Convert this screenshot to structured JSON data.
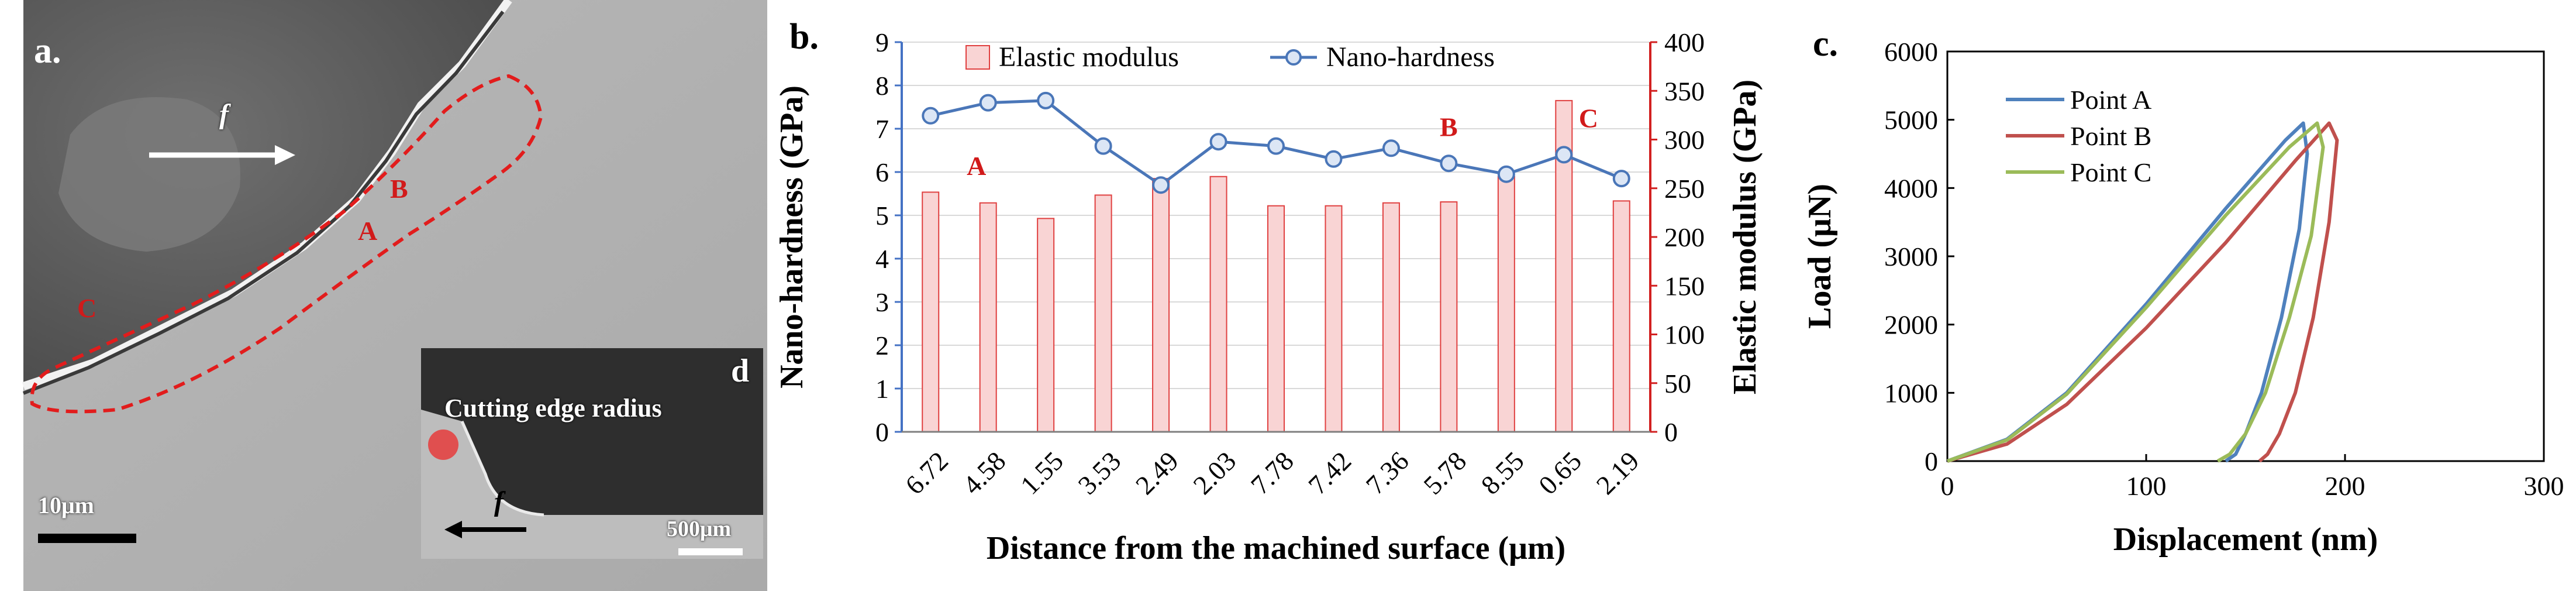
{
  "panel_a": {
    "label": "a.",
    "feed_symbol": "f",
    "points": [
      "A",
      "B",
      "C"
    ],
    "scalebar": "10μm",
    "inset": {
      "label": "d",
      "caption": "Cutting edge radius",
      "feed_symbol": "f",
      "scalebar": "500μm"
    }
  },
  "panel_b": {
    "label": "b.",
    "annotations": [
      "A",
      "B",
      "C"
    ]
  },
  "panel_c": {
    "label": "c."
  },
  "colors": {
    "bar_fill": "#f9d4d4",
    "bar_edge": "#e04040",
    "hardness_line": "#4a76b8",
    "axis_right": "#d22020",
    "curve_a": "#4f81bd",
    "curve_b": "#c0504d",
    "curve_c": "#9bbb59",
    "annotation": "#d11a1a"
  },
  "chart_data": [
    {
      "type": "bar",
      "xlabel": "Distance from the machined surface (μm)",
      "ylabel": "Nano-hardness (GPa)",
      "y2label": "Elastic modulus (GPa)",
      "categories": [
        "6.72",
        "4.58",
        "1.55",
        "3.53",
        "2.49",
        "2.03",
        "7.78",
        "7.42",
        "7.36",
        "5.78",
        "8.55",
        "0.65",
        "2.19"
      ],
      "ylim": [
        0,
        9
      ],
      "y2lim": [
        0,
        400
      ],
      "yticks": [
        0,
        1,
        2,
        3,
        4,
        5,
        6,
        7,
        8,
        9
      ],
      "y2ticks": [
        0,
        50,
        100,
        150,
        200,
        250,
        300,
        350,
        400
      ],
      "legend_position": "top",
      "series": [
        {
          "name": "Elastic modulus",
          "kind": "bar",
          "axis": "right",
          "values": [
            246,
            235,
            219,
            243,
            260,
            262,
            232,
            232,
            235,
            236,
            262,
            340,
            237
          ]
        },
        {
          "name": "Nano-hardness",
          "kind": "line",
          "axis": "left",
          "values": [
            7.3,
            7.6,
            7.65,
            6.6,
            5.7,
            6.7,
            6.6,
            6.3,
            6.55,
            6.2,
            5.95,
            6.4,
            5.85
          ]
        }
      ]
    },
    {
      "type": "line",
      "xlabel": "Displacement (nm)",
      "ylabel": "Load (μN)",
      "xlim": [
        0,
        300
      ],
      "ylim": [
        0,
        6000
      ],
      "xticks": [
        0,
        100,
        200,
        300
      ],
      "yticks": [
        0,
        1000,
        2000,
        3000,
        4000,
        5000,
        6000
      ],
      "legend_position": "top-left",
      "series": [
        {
          "name": "Point A",
          "x": [
            0,
            30,
            60,
            100,
            140,
            170,
            179,
            181,
            177,
            168,
            158,
            150,
            145,
            140
          ],
          "y": [
            0,
            320,
            1000,
            2300,
            3700,
            4700,
            4950,
            4500,
            3400,
            2100,
            1000,
            400,
            100,
            0
          ]
        },
        {
          "name": "Point B",
          "x": [
            0,
            30,
            60,
            100,
            140,
            175,
            192,
            196,
            192,
            184,
            175,
            167,
            161,
            157
          ],
          "y": [
            0,
            250,
            830,
            1950,
            3200,
            4400,
            4950,
            4700,
            3500,
            2100,
            1000,
            400,
            100,
            0
          ]
        },
        {
          "name": "Point C",
          "x": [
            0,
            30,
            60,
            100,
            140,
            172,
            186,
            189,
            183,
            172,
            160,
            150,
            142,
            136
          ],
          "y": [
            0,
            310,
            980,
            2250,
            3600,
            4600,
            4950,
            4600,
            3300,
            2100,
            1000,
            400,
            100,
            0
          ]
        }
      ]
    }
  ]
}
